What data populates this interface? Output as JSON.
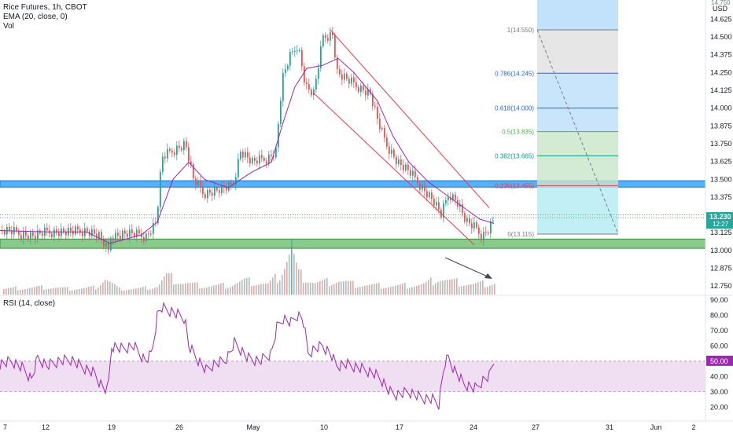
{
  "legend": {
    "symbol": "Rice Futures, 1h, CBOT",
    "ema": "EMA (20, close, 0)",
    "vol": "Vol",
    "rsi": "RSI (14, close)"
  },
  "price_axis": {
    "currency": "USD",
    "top_partial": "14.750",
    "ticks": [
      "14.625",
      "14.500",
      "14.375",
      "14.250",
      "14.125",
      "14.000",
      "13.875",
      "13.750",
      "13.625",
      "13.500",
      "13.375",
      "13.250",
      "13.125",
      "13.000",
      "12.875",
      "12.750"
    ],
    "last_price": "13.230",
    "countdown": "12:27"
  },
  "rsi_axis": {
    "ticks": [
      "90.00",
      "80.00",
      "70.00",
      "60.00",
      "50.00",
      "40.00",
      "30.00",
      "20.00"
    ],
    "current": "50.00"
  },
  "time_axis": {
    "labels": [
      "7",
      "12",
      "19",
      "26",
      "May",
      "10",
      "17",
      "24",
      "27",
      "31",
      "Jun",
      "2"
    ]
  },
  "fib_levels": [
    {
      "label": "1(14.550)",
      "value": 14.55,
      "color": "#787b86"
    },
    {
      "label": "0.786(14.245)",
      "value": 14.245,
      "color": "#2962ff"
    },
    {
      "label": "0.618(14.000)",
      "value": 14.0,
      "color": "#2962ff"
    },
    {
      "label": "0.5(13.835)",
      "value": 13.835,
      "color": "#4caf50"
    },
    {
      "label": "0.382(13.665)",
      "value": 13.665,
      "color": "#089981"
    },
    {
      "label": "0.236(13.455)",
      "value": 13.455,
      "color": "#f23645"
    },
    {
      "label": "0(13.115)",
      "value": 13.115,
      "color": "#787b86"
    }
  ],
  "colors": {
    "up": "#26a69a",
    "down": "#ef5350",
    "ema": "#9c27b0",
    "rsi": "#9c27b0",
    "resistance_zone": "#2196f3",
    "support_zone": "#4caf50",
    "channel": "#f23645",
    "arrow": "#434651"
  },
  "chart_data": {
    "type": "candlestick",
    "title": "Rice Futures, 1h, CBOT",
    "ylim": [
      12.69,
      14.76
    ],
    "resistance_zone": [
      13.445,
      13.49
    ],
    "support_zone": [
      13.015,
      13.08
    ],
    "close_series": [
      [
        0,
        13.14
      ],
      [
        16,
        13.13
      ],
      [
        40,
        13.1
      ],
      [
        60,
        13.13
      ],
      [
        90,
        13.13
      ],
      [
        110,
        13.14
      ],
      [
        125,
        13.1
      ],
      [
        137,
        12.99
      ],
      [
        140,
        13.1
      ],
      [
        160,
        13.12
      ],
      [
        185,
        13.1
      ],
      [
        198,
        13.2
      ],
      [
        205,
        13.65
      ],
      [
        218,
        13.7
      ],
      [
        235,
        13.75
      ],
      [
        245,
        13.5
      ],
      [
        258,
        13.4
      ],
      [
        280,
        13.43
      ],
      [
        295,
        13.45
      ],
      [
        305,
        13.7
      ],
      [
        320,
        13.62
      ],
      [
        340,
        13.65
      ],
      [
        350,
        13.7
      ],
      [
        358,
        14.2
      ],
      [
        367,
        14.35
      ],
      [
        378,
        14.45
      ],
      [
        388,
        14.15
      ],
      [
        398,
        14.1
      ],
      [
        410,
        14.5
      ],
      [
        422,
        14.52
      ],
      [
        428,
        14.25
      ],
      [
        440,
        14.2
      ],
      [
        455,
        14.15
      ],
      [
        470,
        14.1
      ],
      [
        480,
        13.9
      ],
      [
        490,
        13.75
      ],
      [
        505,
        13.62
      ],
      [
        520,
        13.55
      ],
      [
        535,
        13.45
      ],
      [
        550,
        13.35
      ],
      [
        560,
        13.25
      ],
      [
        570,
        13.4
      ],
      [
        580,
        13.35
      ],
      [
        592,
        13.2
      ],
      [
        605,
        13.15
      ],
      [
        612,
        13.1
      ],
      [
        620,
        13.15
      ],
      [
        628,
        13.23
      ]
    ],
    "ema_series": [
      [
        0,
        13.14
      ],
      [
        60,
        13.13
      ],
      [
        110,
        13.13
      ],
      [
        140,
        13.05
      ],
      [
        180,
        13.11
      ],
      [
        200,
        13.2
      ],
      [
        220,
        13.5
      ],
      [
        240,
        13.62
      ],
      [
        260,
        13.5
      ],
      [
        290,
        13.44
      ],
      [
        320,
        13.55
      ],
      [
        345,
        13.62
      ],
      [
        360,
        13.9
      ],
      [
        375,
        14.15
      ],
      [
        390,
        14.28
      ],
      [
        410,
        14.3
      ],
      [
        430,
        14.35
      ],
      [
        450,
        14.25
      ],
      [
        480,
        14.05
      ],
      [
        500,
        13.8
      ],
      [
        520,
        13.62
      ],
      [
        545,
        13.48
      ],
      [
        570,
        13.38
      ],
      [
        590,
        13.3
      ],
      [
        610,
        13.22
      ],
      [
        628,
        13.19
      ]
    ],
    "volume": {
      "range": [
        0,
        100
      ],
      "series": [
        [
          0,
          12,
          0
        ],
        [
          30,
          14,
          1
        ],
        [
          60,
          16,
          0
        ],
        [
          90,
          12,
          1
        ],
        [
          120,
          15,
          0
        ],
        [
          133,
          35,
          1
        ],
        [
          150,
          12,
          0
        ],
        [
          180,
          13,
          1
        ],
        [
          200,
          18,
          0
        ],
        [
          210,
          40,
          1
        ],
        [
          232,
          25,
          0
        ],
        [
          260,
          18,
          1
        ],
        [
          290,
          20,
          0
        ],
        [
          310,
          30,
          1
        ],
        [
          340,
          22,
          0
        ],
        [
          355,
          42,
          1
        ],
        [
          370,
          100,
          0
        ],
        [
          378,
          45,
          1
        ],
        [
          400,
          25,
          0
        ],
        [
          430,
          30,
          1
        ],
        [
          450,
          22,
          0
        ],
        [
          470,
          20,
          1
        ],
        [
          500,
          18,
          0
        ],
        [
          520,
          20,
          1
        ],
        [
          540,
          22,
          0
        ],
        [
          555,
          35,
          1
        ],
        [
          575,
          28,
          0
        ],
        [
          600,
          22,
          1
        ],
        [
          628,
          25,
          0
        ]
      ]
    },
    "rsi": {
      "ylim": [
        15,
        92
      ],
      "band": [
        30,
        50
      ],
      "series": [
        [
          0,
          48
        ],
        [
          15,
          50
        ],
        [
          30,
          45
        ],
        [
          40,
          38
        ],
        [
          48,
          52
        ],
        [
          60,
          47
        ],
        [
          75,
          50
        ],
        [
          90,
          51
        ],
        [
          105,
          46
        ],
        [
          120,
          42
        ],
        [
          128,
          35
        ],
        [
          137,
          30
        ],
        [
          142,
          60
        ],
        [
          155,
          58
        ],
        [
          170,
          60
        ],
        [
          185,
          50
        ],
        [
          193,
          55
        ],
        [
          200,
          80
        ],
        [
          205,
          85
        ],
        [
          220,
          82
        ],
        [
          235,
          78
        ],
        [
          240,
          60
        ],
        [
          250,
          52
        ],
        [
          262,
          44
        ],
        [
          272,
          48
        ],
        [
          285,
          50
        ],
        [
          292,
          55
        ],
        [
          298,
          62
        ],
        [
          305,
          58
        ],
        [
          315,
          52
        ],
        [
          330,
          50
        ],
        [
          345,
          55
        ],
        [
          352,
          72
        ],
        [
          360,
          78
        ],
        [
          370,
          75
        ],
        [
          378,
          80
        ],
        [
          385,
          78
        ],
        [
          392,
          55
        ],
        [
          400,
          58
        ],
        [
          410,
          60
        ],
        [
          420,
          55
        ],
        [
          428,
          47
        ],
        [
          440,
          48
        ],
        [
          460,
          45
        ],
        [
          475,
          42
        ],
        [
          485,
          38
        ],
        [
          495,
          30
        ],
        [
          505,
          28
        ],
        [
          520,
          30
        ],
        [
          535,
          26
        ],
        [
          550,
          25
        ],
        [
          558,
          22
        ],
        [
          565,
          48
        ],
        [
          570,
          52
        ],
        [
          578,
          44
        ],
        [
          590,
          35
        ],
        [
          605,
          32
        ],
        [
          615,
          38
        ],
        [
          622,
          40
        ],
        [
          628,
          50
        ]
      ]
    }
  }
}
